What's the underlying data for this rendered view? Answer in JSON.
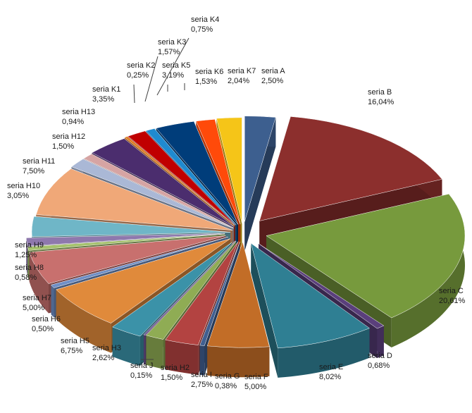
{
  "chart_data": {
    "type": "pie",
    "style": "3d-exploded",
    "legend": "none",
    "slices": [
      {
        "name": "seria A",
        "value": "2,50%",
        "pct": 2.5,
        "color": "#3d5f8f"
      },
      {
        "name": "seria B",
        "value": "16,04%",
        "pct": 16.04,
        "color": "#8c2f2d"
      },
      {
        "name": "seria C",
        "value": "20,61%",
        "pct": 20.61,
        "color": "#779a3d"
      },
      {
        "name": "seria D",
        "value": "0,68%",
        "pct": 0.68,
        "color": "#5a3f7c"
      },
      {
        "name": "seria E",
        "value": "8,02%",
        "pct": 8.02,
        "color": "#2f7f93"
      },
      {
        "name": "seria F",
        "value": "5,00%",
        "pct": 5.0,
        "color": "#c26d27"
      },
      {
        "name": "seria G",
        "value": "0,38%",
        "pct": 0.38,
        "color": "#405f90"
      },
      {
        "name": "seria I",
        "value": "2,75%",
        "pct": 2.75,
        "color": "#b34341"
      },
      {
        "name": "seria H2",
        "value": "1,50%",
        "pct": 1.5,
        "color": "#8fac54"
      },
      {
        "name": "seria J",
        "value": "0,15%",
        "pct": 0.15,
        "color": "#6a4f8e"
      },
      {
        "name": "seria H3",
        "value": "2,62%",
        "pct": 2.62,
        "color": "#3b92a8"
      },
      {
        "name": "seria H5",
        "value": "6,75%",
        "pct": 6.75,
        "color": "#e08a3b"
      },
      {
        "name": "seria H6",
        "value": "0,50%",
        "pct": 0.5,
        "color": "#6f8fc6"
      },
      {
        "name": "seria H7",
        "value": "5,00%",
        "pct": 5.0,
        "color": "#c8706e"
      },
      {
        "name": "seria H8",
        "value": "0,58%",
        "pct": 0.58,
        "color": "#a5c26c"
      },
      {
        "name": "seria H9",
        "value": "1,25%",
        "pct": 1.25,
        "color": "#8e78ad"
      },
      {
        "name": "seria H10",
        "value": "3,05%",
        "pct": 3.05,
        "color": "#6fb6c7"
      },
      {
        "name": "seria H11",
        "value": "7,50%",
        "pct": 7.5,
        "color": "#f0a878"
      },
      {
        "name": "seria H12",
        "value": "1,50%",
        "pct": 1.5,
        "color": "#aab8d6"
      },
      {
        "name": "seria H13",
        "value": "0,94%",
        "pct": 0.94,
        "color": "#d6a4a3"
      },
      {
        "name": "seria K1",
        "value": "3,35%",
        "pct": 3.35,
        "color": "#4b2d6e"
      },
      {
        "name": "seria K2",
        "value": "0,25%",
        "pct": 0.25,
        "color": "#e07b20"
      },
      {
        "name": "seria K3",
        "value": "1,57%",
        "pct": 1.57,
        "color": "#c00000"
      },
      {
        "name": "seria K4",
        "value": "0,75%",
        "pct": 0.75,
        "color": "#1f8ad0"
      },
      {
        "name": "seria K5",
        "value": "3,19%",
        "pct": 3.19,
        "color": "#003d7a"
      },
      {
        "name": "seria K6",
        "value": "1,53%",
        "pct": 1.53,
        "color": "#ff4a0a"
      },
      {
        "name": "seria K7",
        "value": "2,04%",
        "pct": 2.04,
        "color": "#f5c518"
      }
    ]
  }
}
